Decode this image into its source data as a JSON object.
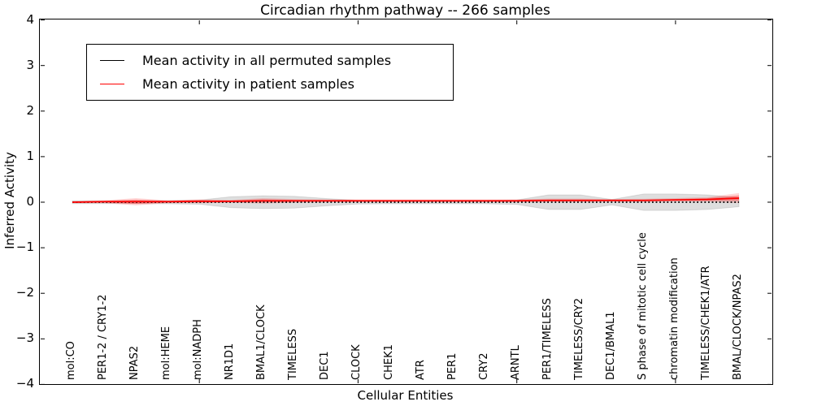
{
  "chart_data": {
    "type": "line",
    "title": "Circadian rhythm pathway -- 266 samples",
    "xlabel": "Cellular Entities",
    "ylabel": "Inferred Activity",
    "ylim": [
      -4,
      4
    ],
    "grid": false,
    "legend_position": "upper left",
    "yticks": [
      4,
      3,
      2,
      1,
      0,
      -1,
      -2,
      -3,
      -4
    ],
    "ytick_labels": [
      "4",
      "3",
      "2",
      "1",
      "0",
      "−1",
      "−2",
      "−3",
      "−4"
    ],
    "x_tick_indices": [
      4,
      9,
      14,
      19
    ],
    "categories": [
      "mol:CO",
      "PER1-2 / CRY1-2",
      "NPAS2",
      "mol:HEME",
      "mol:NADPH",
      "NR1D1",
      "BMAL1/CLOCK",
      "TIMELESS",
      "DEC1",
      "CLOCK",
      "CHEK1",
      "ATR",
      "PER1",
      "CRY2",
      "ARNTL",
      "PER1/TIMELESS",
      "TIMELESS/CRY2",
      "DEC1/BMAL1",
      "S phase of mitotic cell cycle",
      "chromatin modification",
      "TIMELESS/CHEK1/ATR",
      "BMAL/CLOCK/NPAS2"
    ],
    "series": [
      {
        "name": "Mean activity in all permuted samples",
        "color": "#000000",
        "line_style": "dotted",
        "values": [
          0,
          0,
          0,
          0,
          0,
          0,
          0,
          0,
          0,
          0,
          0,
          0,
          0,
          0,
          0,
          0,
          0,
          0,
          0,
          0,
          0,
          0
        ]
      },
      {
        "name": "Mean activity in patient samples",
        "color": "#ff0000",
        "line_style": "solid",
        "values": [
          0.0,
          0.01,
          0.01,
          0.01,
          0.02,
          0.02,
          0.03,
          0.03,
          0.03,
          0.03,
          0.03,
          0.03,
          0.03,
          0.03,
          0.03,
          0.04,
          0.04,
          0.04,
          0.04,
          0.05,
          0.06,
          0.09
        ]
      }
    ],
    "bands": [
      {
        "name": "permuted-samples-envelope",
        "fill": "rgba(0,0,0,0.13)",
        "edge": "rgba(0,0,0,0.10)",
        "center_series": 0,
        "half_widths": [
          0.03,
          0.03,
          0.03,
          0.035,
          0.045,
          0.12,
          0.14,
          0.13,
          0.08,
          0.04,
          0.035,
          0.035,
          0.035,
          0.035,
          0.05,
          0.16,
          0.16,
          0.06,
          0.18,
          0.18,
          0.16,
          0.1
        ]
      },
      {
        "name": "patient-samples-envelope-outer",
        "fill": "rgba(255,0,0,0.16)",
        "edge": "none",
        "center_series": 1,
        "half_widths": [
          0.02,
          0.03,
          0.08,
          0.03,
          0.045,
          0.03,
          0.06,
          0.04,
          0.03,
          0.03,
          0.03,
          0.03,
          0.03,
          0.03,
          0.03,
          0.04,
          0.04,
          0.03,
          0.035,
          0.04,
          0.05,
          0.11
        ]
      },
      {
        "name": "patient-samples-envelope-inner",
        "fill": "rgba(255,0,0,0.30)",
        "edge": "none",
        "center_series": 1,
        "half_widths": [
          0.012,
          0.018,
          0.045,
          0.018,
          0.025,
          0.018,
          0.035,
          0.022,
          0.018,
          0.018,
          0.018,
          0.018,
          0.018,
          0.018,
          0.018,
          0.022,
          0.022,
          0.018,
          0.02,
          0.022,
          0.03,
          0.06
        ]
      }
    ]
  }
}
